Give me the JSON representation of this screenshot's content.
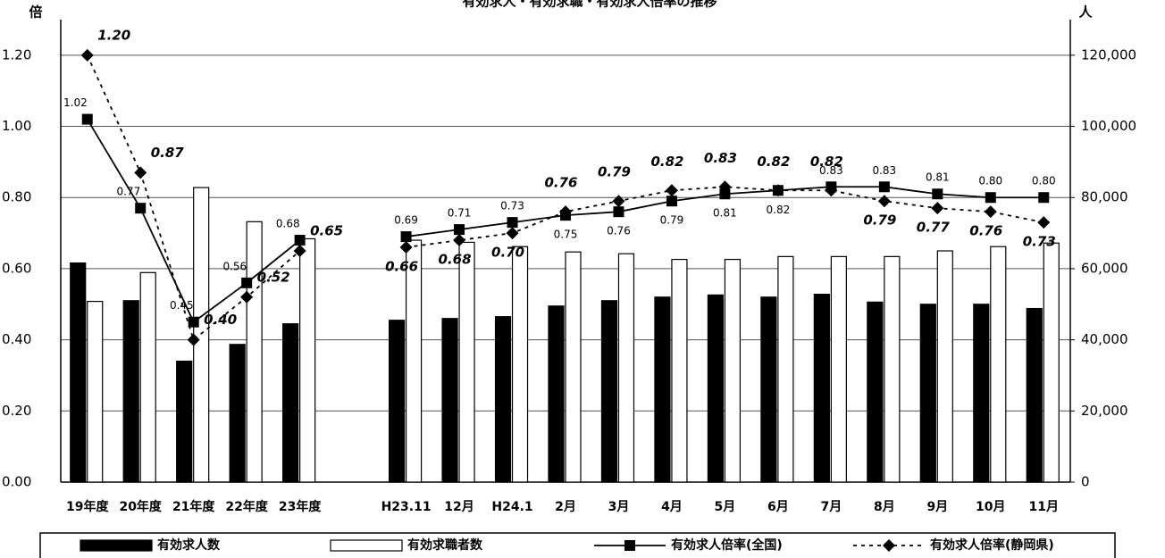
{
  "chart_data": {
    "type": "bar-line",
    "title": "有効求人・有効求職・有効求人倍率の推移",
    "y_label": "倍",
    "y2_label": "人",
    "categories": [
      "19年度",
      "20年度",
      "21年度",
      "22年度",
      "23年度",
      null,
      "H23.11",
      "12月",
      "H24.1",
      "2月",
      "3月",
      "4月",
      "5月",
      "6月",
      "7月",
      "8月",
      "9月",
      "10月",
      "11月"
    ],
    "ylim": [
      0,
      1.3
    ],
    "yticks": [
      {
        "value": 0,
        "label": "0.00"
      },
      {
        "value": 0.2,
        "label": "0.20"
      },
      {
        "value": 0.4,
        "label": "0.40"
      },
      {
        "value": 0.6,
        "label": "0.60"
      },
      {
        "value": 0.8,
        "label": "0.80"
      },
      {
        "value": 1.0,
        "label": "1.00"
      },
      {
        "value": 1.2,
        "label": "1.20"
      }
    ],
    "y2lim": [
      0,
      130000
    ],
    "y2ticks": [
      0,
      {
        "value": 20000,
        "label": "20,000"
      },
      {
        "value": 40000,
        "label": "40,000"
      },
      {
        "value": 60000,
        "label": "60,000"
      },
      {
        "value": 80000,
        "label": "80,000"
      },
      {
        "value": 100000,
        "label": "100,000"
      },
      {
        "value": 120000,
        "label": "120,000"
      }
    ],
    "grid": true,
    "legend": "bottom",
    "series": [
      {
        "name": "有効求人数",
        "type": "bar",
        "axis": "y2",
        "color": "#000000",
        "values": [
          61600,
          51000,
          34000,
          38700,
          44500,
          null,
          45500,
          46000,
          46500,
          49500,
          51000,
          52000,
          52600,
          52000,
          52800,
          50600,
          50000,
          50000,
          48800
        ]
      },
      {
        "name": "有効求職者数",
        "type": "bar",
        "axis": "y2",
        "color": "#ffffff",
        "values": [
          50800,
          58900,
          82800,
          73200,
          68400,
          null,
          68000,
          67400,
          66200,
          64700,
          64200,
          62600,
          62600,
          63400,
          63400,
          63400,
          65000,
          66200,
          67200
        ]
      },
      {
        "name": "有効求人倍率(全国)",
        "type": "line",
        "color": "#000000",
        "values": [
          1.02,
          0.77,
          0.45,
          0.56,
          0.68,
          null,
          0.69,
          0.71,
          0.73,
          0.75,
          0.76,
          0.79,
          0.81,
          0.82,
          0.83,
          0.83,
          0.81,
          0.8,
          0.8
        ],
        "value_labels": [
          "1.02",
          "0.77",
          "0.45",
          "0.56",
          "0.68",
          null,
          "0.69",
          "0.71",
          "0.73",
          "0.75",
          "0.76",
          "0.79",
          "0.81",
          "0.82",
          "0.83",
          "0.83",
          "0.81",
          "0.80",
          "0.80"
        ]
      },
      {
        "name": "有効求人倍率(静岡県)",
        "type": "line",
        "color": "#000000",
        "values": [
          1.2,
          0.87,
          0.4,
          0.52,
          0.65,
          null,
          0.66,
          0.68,
          0.7,
          0.76,
          0.79,
          0.82,
          0.83,
          0.82,
          0.82,
          0.79,
          0.77,
          0.76,
          0.73
        ],
        "value_labels": [
          "1.20",
          "0.87",
          "0.40",
          "0.52",
          "0.65",
          null,
          "0.66",
          "0.68",
          "0.70",
          "0.76",
          "0.79",
          "0.82",
          "0.83",
          "0.82",
          "0.82",
          "0.79",
          "0.77",
          "0.76",
          "0.73"
        ]
      }
    ]
  }
}
